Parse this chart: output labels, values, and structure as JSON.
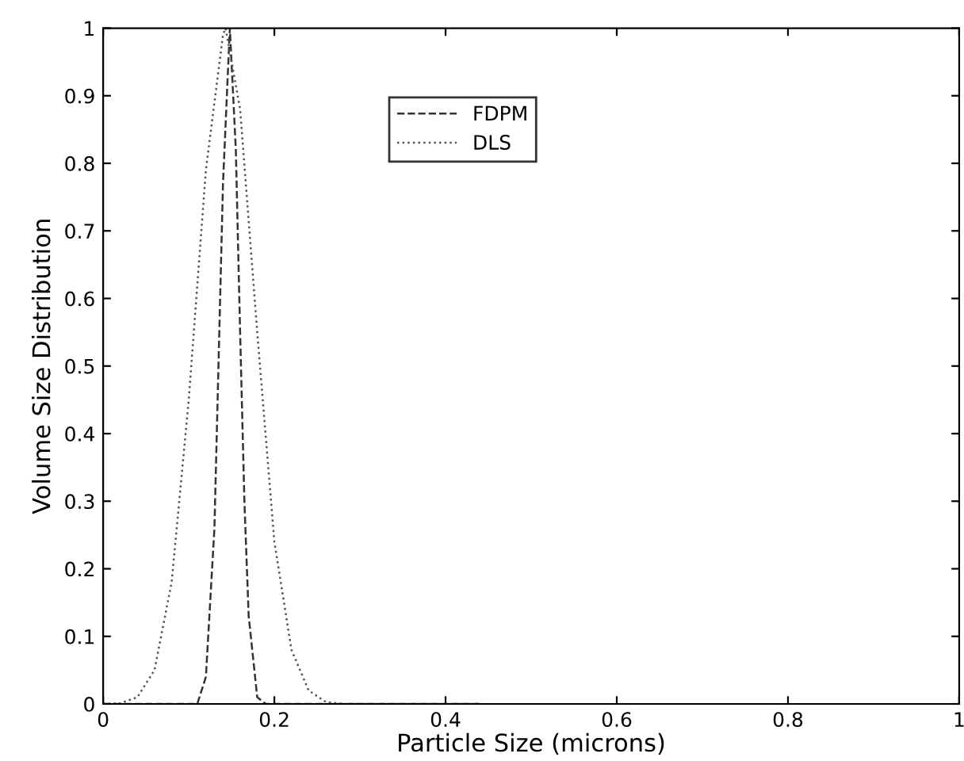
{
  "chart_data": {
    "type": "line",
    "xlabel": "Particle Size (microns)",
    "ylabel": "Volume Size Distribution",
    "xlim": [
      0,
      1
    ],
    "ylim": [
      0,
      1
    ],
    "xticks": [
      0,
      0.2,
      0.4,
      0.6,
      0.8,
      1
    ],
    "yticks": [
      0,
      0.1,
      0.2,
      0.3,
      0.4,
      0.5,
      0.6,
      0.7,
      0.8,
      0.9,
      1
    ],
    "grid": false,
    "legend": "top",
    "marker": "none",
    "series": [
      {
        "name": "FDPM",
        "color": "#333333",
        "line_style": "dashed",
        "x": [
          0,
          0.11,
          0.12,
          0.13,
          0.14,
          0.148,
          0.155,
          0.16,
          0.165,
          0.17,
          0.18,
          0.19,
          0.44
        ],
        "values": [
          0,
          0,
          0.04,
          0.26,
          0.77,
          1.0,
          0.82,
          0.55,
          0.3,
          0.13,
          0.01,
          0,
          0
        ]
      },
      {
        "name": "DLS",
        "color": "#555555",
        "line_style": "dotted",
        "x": [
          0,
          0.02,
          0.04,
          0.06,
          0.08,
          0.1,
          0.12,
          0.14,
          0.143,
          0.16,
          0.18,
          0.2,
          0.22,
          0.24,
          0.26,
          0.28,
          0.44
        ],
        "values": [
          0,
          0.001,
          0.01,
          0.05,
          0.18,
          0.45,
          0.79,
          0.99,
          1.0,
          0.88,
          0.55,
          0.24,
          0.08,
          0.02,
          0.003,
          0,
          0
        ]
      }
    ]
  }
}
